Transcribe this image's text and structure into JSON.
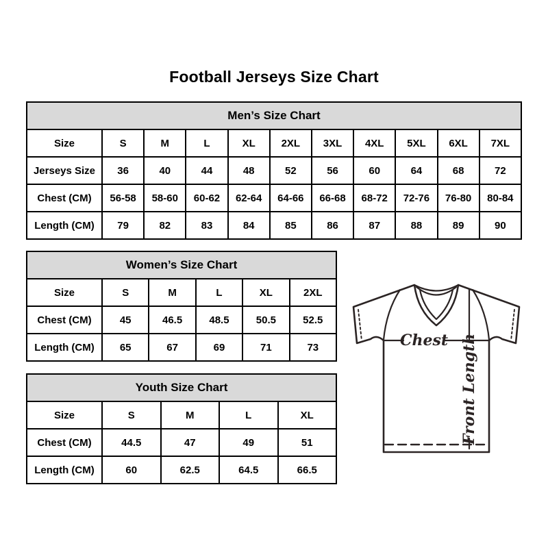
{
  "page": {
    "title": "Football Jerseys Size Chart"
  },
  "tables": {
    "men": {
      "title": "Men’s Size Chart",
      "first_col_width": 110,
      "rows": [
        {
          "label": "Size",
          "values": [
            "S",
            "M",
            "L",
            "XL",
            "2XL",
            "3XL",
            "4XL",
            "5XL",
            "6XL",
            "7XL"
          ]
        },
        {
          "label": "Jerseys Size",
          "values": [
            "36",
            "40",
            "44",
            "48",
            "52",
            "56",
            "60",
            "64",
            "68",
            "72"
          ]
        },
        {
          "label": "Chest (CM)",
          "values": [
            "56-58",
            "58-60",
            "60-62",
            "62-64",
            "64-66",
            "66-68",
            "68-72",
            "72-76",
            "76-80",
            "80-84"
          ]
        },
        {
          "label": "Length (CM)",
          "values": [
            "79",
            "82",
            "83",
            "84",
            "85",
            "86",
            "87",
            "88",
            "89",
            "90"
          ]
        }
      ]
    },
    "women": {
      "title": "Women’s Size Chart",
      "first_col_width": 110,
      "rows": [
        {
          "label": "Size",
          "values": [
            "S",
            "M",
            "L",
            "XL",
            "2XL"
          ]
        },
        {
          "label": "Chest (CM)",
          "values": [
            "45",
            "46.5",
            "48.5",
            "50.5",
            "52.5"
          ]
        },
        {
          "label": "Length (CM)",
          "values": [
            "65",
            "67",
            "69",
            "71",
            "73"
          ]
        }
      ]
    },
    "youth": {
      "title": "Youth Size Chart",
      "first_col_width": 110,
      "rows": [
        {
          "label": "Size",
          "values": [
            "S",
            "M",
            "L",
            "XL"
          ]
        },
        {
          "label": "Chest (CM)",
          "values": [
            "44.5",
            "47",
            "49",
            "51"
          ]
        },
        {
          "label": "Length (CM)",
          "values": [
            "60",
            "62.5",
            "64.5",
            "66.5"
          ]
        }
      ]
    }
  },
  "diagram": {
    "chest_label": "Chest",
    "front_length_label": "Front Length"
  },
  "colors": {
    "header_bg": "#d9d9d9",
    "border": "#000000",
    "text": "#000000",
    "diagram_stroke": "#2b2424"
  }
}
